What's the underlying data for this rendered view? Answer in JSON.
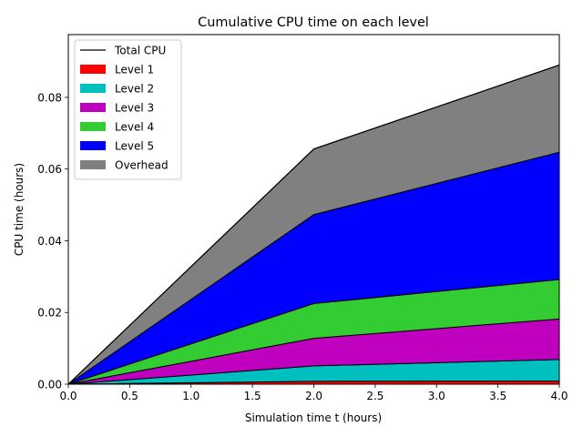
{
  "chart_data": {
    "type": "area",
    "title": "Cumulative CPU time on each level",
    "xlabel": "Simulation time t (hours)",
    "ylabel": "CPU time (hours)",
    "xlim": [
      0,
      4
    ],
    "ylim": [
      0,
      0.0975
    ],
    "x": [
      0,
      2,
      4
    ],
    "xticks": [
      "0.0",
      "0.5",
      "1.0",
      "1.5",
      "2.0",
      "2.5",
      "3.0",
      "3.5",
      "4.0"
    ],
    "xtick_values": [
      0,
      0.5,
      1,
      1.5,
      2,
      2.5,
      3,
      3.5,
      4
    ],
    "yticks": [
      "0.00",
      "0.02",
      "0.04",
      "0.06",
      "0.08"
    ],
    "ytick_values": [
      0,
      0.02,
      0.04,
      0.06,
      0.08
    ],
    "stacked": true,
    "grid": false,
    "legend_position": "top-left",
    "series": [
      {
        "name": "Level 1",
        "color": "#ff0000",
        "values": [
          0,
          0.0008,
          0.0009
        ]
      },
      {
        "name": "Level 2",
        "color": "#00bfbf",
        "values": [
          0,
          0.0043,
          0.006
        ]
      },
      {
        "name": "Level 3",
        "color": "#bf00bf",
        "values": [
          0,
          0.0077,
          0.0113
        ]
      },
      {
        "name": "Level 4",
        "color": "#33cc33",
        "values": [
          0,
          0.0097,
          0.011
        ]
      },
      {
        "name": "Level 5",
        "color": "#0000ff",
        "values": [
          0,
          0.0248,
          0.0355
        ]
      },
      {
        "name": "Overhead",
        "color": "#808080",
        "values": [
          0,
          0.0183,
          0.0243
        ]
      }
    ],
    "total_line": {
      "name": "Total CPU",
      "color": "#000000",
      "values": [
        0,
        0.0656,
        0.089
      ]
    }
  }
}
